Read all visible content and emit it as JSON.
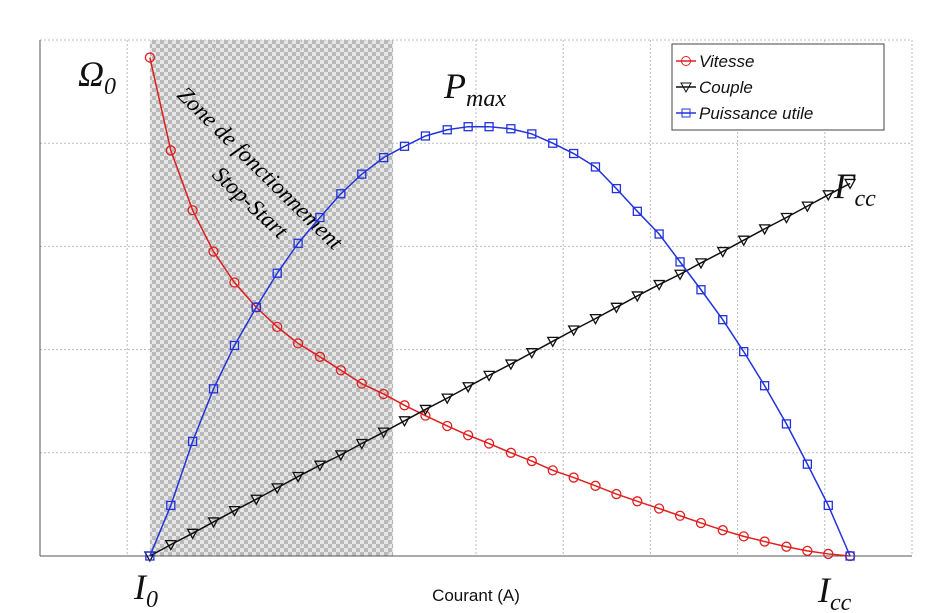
{
  "chart_data": {
    "type": "line",
    "x_label": "Courant (A)",
    "x": [
      1.26,
      1.5,
      1.75,
      1.99,
      2.23,
      2.48,
      2.72,
      2.96,
      3.21,
      3.45,
      3.69,
      3.94,
      4.18,
      4.42,
      4.67,
      4.91,
      5.15,
      5.4,
      5.64,
      5.88,
      6.12,
      6.37,
      6.61,
      6.85,
      7.1,
      7.34,
      7.58,
      7.83,
      8.07,
      8.31,
      8.56,
      8.8,
      9.04,
      9.29
    ],
    "series": [
      {
        "name": "Vitesse",
        "color": "#e02020",
        "marker": "circle",
        "values": [
          4.83,
          3.93,
          3.35,
          2.95,
          2.65,
          2.41,
          2.22,
          2.06,
          1.93,
          1.8,
          1.67,
          1.57,
          1.46,
          1.36,
          1.26,
          1.17,
          1.09,
          1.0,
          0.92,
          0.83,
          0.76,
          0.68,
          0.6,
          0.53,
          0.46,
          0.39,
          0.32,
          0.25,
          0.19,
          0.14,
          0.09,
          0.05,
          0.02,
          0
        ]
      },
      {
        "name": "Couple",
        "color": "#111111",
        "marker": "triangle-down",
        "values": [
          0,
          0.11,
          0.22,
          0.33,
          0.44,
          0.55,
          0.66,
          0.77,
          0.88,
          0.98,
          1.09,
          1.2,
          1.31,
          1.42,
          1.53,
          1.64,
          1.75,
          1.86,
          1.97,
          2.08,
          2.19,
          2.3,
          2.41,
          2.52,
          2.63,
          2.73,
          2.84,
          2.95,
          3.06,
          3.17,
          3.28,
          3.39,
          3.5,
          3.61
        ]
      },
      {
        "name": "Puissance utile",
        "color": "#2233dd",
        "marker": "square",
        "values": [
          0,
          0.49,
          1.11,
          1.62,
          2.04,
          2.41,
          2.74,
          3.03,
          3.28,
          3.51,
          3.7,
          3.86,
          3.97,
          4.07,
          4.13,
          4.16,
          4.16,
          4.14,
          4.09,
          4.0,
          3.9,
          3.77,
          3.56,
          3.34,
          3.12,
          2.85,
          2.58,
          2.29,
          1.98,
          1.65,
          1.28,
          0.89,
          0.49,
          0
        ]
      }
    ],
    "xlim": [
      0,
      10
    ],
    "ylim": [
      0,
      5
    ],
    "xticks": [
      0,
      1,
      2,
      3,
      4,
      5,
      6,
      7,
      8,
      9,
      10
    ],
    "yticks": [
      0,
      1,
      2,
      3,
      4,
      5
    ],
    "grid": true,
    "legend": "upper right",
    "zone": {
      "xrange": [
        1.26,
        4.05
      ],
      "labels": [
        "Zone de fonctionnement",
        "Stop-Start"
      ]
    },
    "annotations": [
      {
        "text": "Ω",
        "sub": "0"
      },
      {
        "text": "P",
        "sub": "max"
      },
      {
        "text": "Γ",
        "sub": "cc"
      },
      {
        "text": "I",
        "sub": "0"
      },
      {
        "text": "I",
        "sub": "cc"
      }
    ]
  }
}
